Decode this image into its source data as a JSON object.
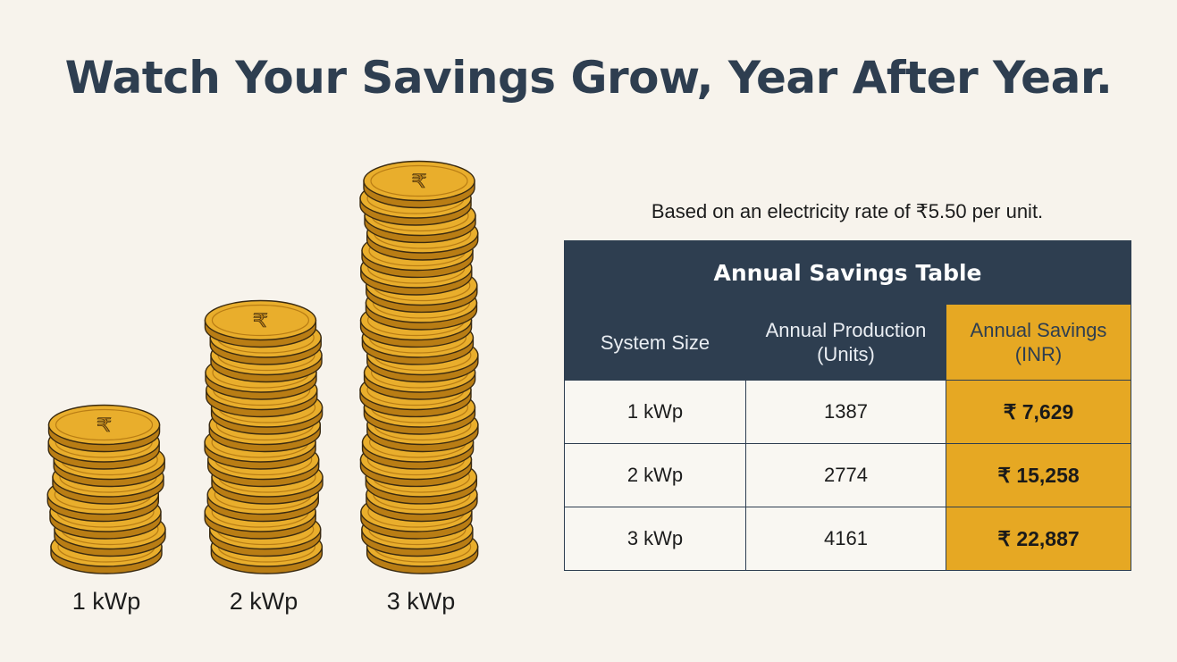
{
  "headline": "Watch Your Savings Grow, Year After Year.",
  "stacks": [
    {
      "label": "1 kWp",
      "coins": 8,
      "coin_symbol": "₹"
    },
    {
      "label": "2 kWp",
      "coins": 14,
      "coin_symbol": "₹"
    },
    {
      "label": "3 kWp",
      "coins": 22,
      "coin_symbol": "₹"
    }
  ],
  "rate_note": "Based on an electricity rate of ₹5.50 per unit.",
  "table": {
    "title": "Annual Savings Table",
    "headers": [
      {
        "line1": "System Size",
        "line2": ""
      },
      {
        "line1": "Annual Production",
        "line2": "(Units)"
      },
      {
        "line1": "Annual Savings",
        "line2": "(INR)"
      }
    ],
    "rows": [
      {
        "size": "1 kWp",
        "production": "1387",
        "savings": "₹ 7,629"
      },
      {
        "size": "2 kWp",
        "production": "2774",
        "savings": "₹ 15,258"
      },
      {
        "size": "3 kWp",
        "production": "4161",
        "savings": "₹ 22,887"
      }
    ]
  },
  "colors": {
    "navy": "#2e3e50",
    "gold": "#e6a823",
    "background": "#f7f3ec",
    "coin_fill": "#e9ae2c",
    "coin_edge": "#b97d14",
    "coin_outline": "#3a2a10"
  }
}
